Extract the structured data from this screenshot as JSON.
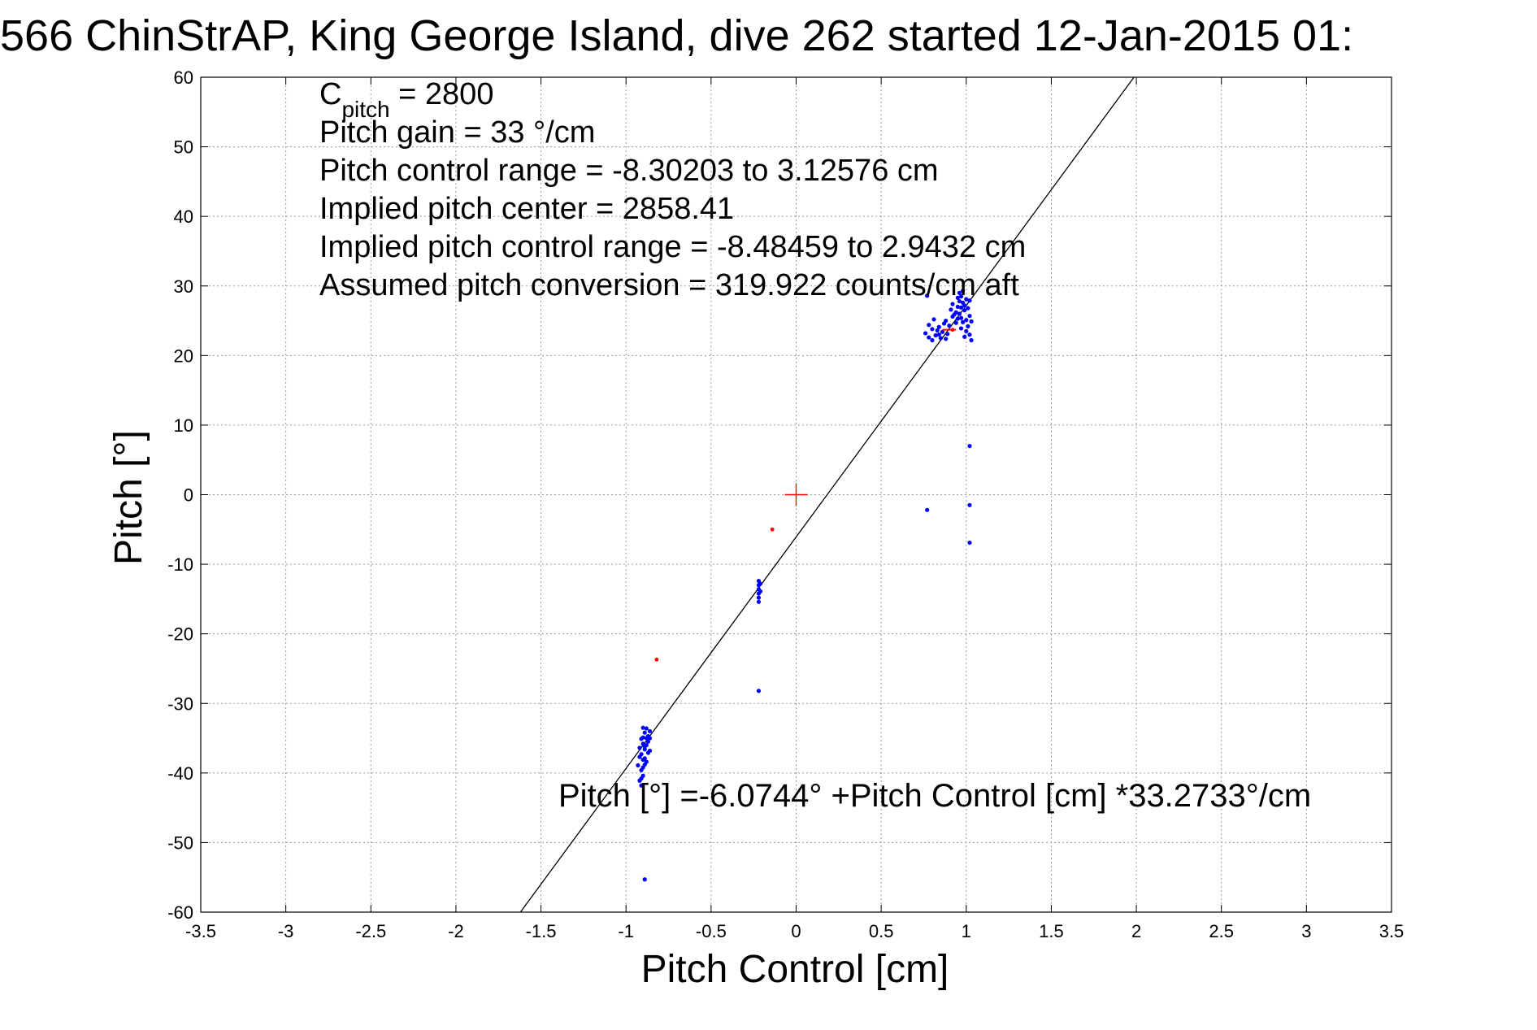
{
  "chart_data": {
    "type": "scatter",
    "title": "566 ChinStrAP, King George Island, dive 262 started 12-Jan-2015 01:",
    "xlabel": "Pitch Control [cm]",
    "ylabel": "Pitch [°]",
    "xlim": [
      -3.5,
      3.5
    ],
    "ylim": [
      -60,
      60
    ],
    "grid": true,
    "xticks": [
      -3.5,
      -3,
      -2.5,
      -2,
      -1.5,
      -1,
      -0.5,
      0,
      0.5,
      1,
      1.5,
      2,
      2.5,
      3,
      3.5
    ],
    "xtick_labels": [
      "-3.5",
      "-3",
      "-2.5",
      "-2",
      "-1.5",
      "-1",
      "-0.5",
      "0",
      "0.5",
      "1",
      "1.5",
      "2",
      "2.5",
      "3",
      "3.5"
    ],
    "yticks": [
      60,
      50,
      40,
      30,
      20,
      10,
      0,
      -10,
      -20,
      -30,
      -40,
      -50,
      -60
    ],
    "ytick_labels": [
      "60",
      "50",
      "40",
      "30",
      "20",
      "10",
      "0",
      "-10",
      "-20",
      "-30",
      "-40",
      "-50",
      "-60"
    ],
    "annotations": [
      {
        "main": "C",
        "sub": "pitch",
        "rest": " = 2800"
      },
      {
        "text": "Pitch gain = 33 °/cm"
      },
      {
        "text": "Pitch control range = -8.30203 to 3.12576 cm"
      },
      {
        "text": "Implied pitch center = 2858.41"
      },
      {
        "text": "Implied pitch control range = -8.48459 to 2.9432 cm"
      },
      {
        "text": "Assumed pitch conversion = 319.922 counts/cm aft"
      }
    ],
    "fit_label": "Pitch [°] =-6.0744° +Pitch Control [cm] *33.2733°/cm",
    "fit_line": {
      "intercept": -6.0744,
      "slope": 33.2733
    },
    "colors": {
      "fit": "#000000",
      "points": "#0000ff",
      "excluded": "#ff0000",
      "center": "#ff0000",
      "grid": "#9a9a9a"
    },
    "center_marker": {
      "x": 0,
      "y": 0
    },
    "red_segment": {
      "x": [
        0.86,
        0.94
      ],
      "y": [
        23.7,
        23.7
      ]
    },
    "series": [
      {
        "values": [
          [
            -0.9,
            -33.5
          ],
          [
            -0.89,
            -34.2
          ],
          [
            -0.88,
            -35.0
          ],
          [
            -0.9,
            -35.8
          ],
          [
            -0.89,
            -36.6
          ],
          [
            -0.91,
            -37.3
          ],
          [
            -0.9,
            -38.1
          ],
          [
            -0.89,
            -38.8
          ],
          [
            -0.91,
            -39.6
          ],
          [
            -0.9,
            -40.4
          ],
          [
            -0.92,
            -41.1
          ],
          [
            -0.91,
            -41.8
          ],
          [
            -0.88,
            -36.0
          ],
          [
            -0.87,
            -35.5
          ],
          [
            -0.86,
            -36.8
          ],
          [
            -0.87,
            -34.7
          ],
          [
            -0.88,
            -33.6
          ],
          [
            -0.92,
            -37.7
          ],
          [
            -0.93,
            -38.9
          ],
          [
            -0.91,
            -35.1
          ],
          [
            -0.89,
            -37.9
          ],
          [
            -0.9,
            -39.2
          ],
          [
            -0.87,
            -37.1
          ],
          [
            -0.86,
            -35.0
          ],
          [
            -0.92,
            -36.4
          ],
          [
            -0.91,
            -40.8
          ],
          [
            -0.88,
            -38.4
          ],
          [
            -0.9,
            -34.9
          ],
          [
            -0.89,
            -36.2
          ],
          [
            -0.86,
            -34.0
          ],
          [
            -0.22,
            -12.4
          ],
          [
            -0.22,
            -13.0
          ],
          [
            -0.22,
            -13.6
          ],
          [
            -0.22,
            -14.2
          ],
          [
            -0.22,
            -14.8
          ],
          [
            -0.22,
            -15.4
          ],
          [
            -0.21,
            -12.8
          ],
          [
            -0.21,
            -13.9
          ],
          [
            -0.22,
            -28.2
          ],
          [
            -0.89,
            -55.3
          ],
          [
            0.77,
            -2.2
          ],
          [
            1.02,
            7.0
          ],
          [
            1.02,
            -1.5
          ],
          [
            1.02,
            -6.9
          ],
          [
            0.76,
            23.2
          ],
          [
            0.78,
            22.6
          ],
          [
            0.8,
            23.8
          ],
          [
            0.82,
            22.9
          ],
          [
            0.84,
            24.1
          ],
          [
            0.86,
            23.4
          ],
          [
            0.88,
            25.0
          ],
          [
            0.9,
            24.3
          ],
          [
            0.92,
            25.6
          ],
          [
            0.94,
            26.2
          ],
          [
            0.95,
            27.0
          ],
          [
            0.96,
            27.8
          ],
          [
            0.97,
            28.5
          ],
          [
            0.98,
            29.3
          ],
          [
            0.99,
            26.5
          ],
          [
            1.0,
            25.1
          ],
          [
            1.01,
            24.2
          ],
          [
            1.02,
            23.0
          ],
          [
            1.03,
            22.2
          ],
          [
            0.97,
            25.4
          ],
          [
            0.98,
            24.8
          ],
          [
            0.96,
            26.0
          ],
          [
            0.95,
            25.3
          ],
          [
            0.99,
            27.2
          ],
          [
            1.0,
            28.1
          ],
          [
            0.94,
            24.7
          ],
          [
            0.93,
            25.9
          ],
          [
            0.97,
            23.9
          ],
          [
            1.01,
            26.8
          ],
          [
            1.02,
            25.7
          ],
          [
            0.78,
            24.4
          ],
          [
            0.8,
            22.2
          ],
          [
            0.83,
            23.6
          ],
          [
            0.85,
            22.5
          ],
          [
            0.87,
            24.6
          ],
          [
            0.89,
            23.1
          ],
          [
            0.91,
            26.6
          ],
          [
            0.92,
            27.4
          ],
          [
            0.96,
            29.0
          ],
          [
            0.98,
            27.6
          ],
          [
            1.03,
            24.9
          ],
          [
            1.0,
            23.5
          ],
          [
            0.99,
            22.7
          ],
          [
            0.95,
            28.3
          ],
          [
            0.97,
            26.9
          ],
          [
            0.77,
            28.6
          ],
          [
            0.81,
            25.2
          ],
          [
            0.84,
            23.0
          ],
          [
            0.88,
            22.4
          ],
          [
            1.02,
            27.9
          ]
        ]
      },
      {
        "values": [
          [
            -0.14,
            -5.0
          ],
          [
            -0.82,
            -23.7
          ],
          [
            0.92,
            23.7
          ]
        ]
      }
    ]
  }
}
